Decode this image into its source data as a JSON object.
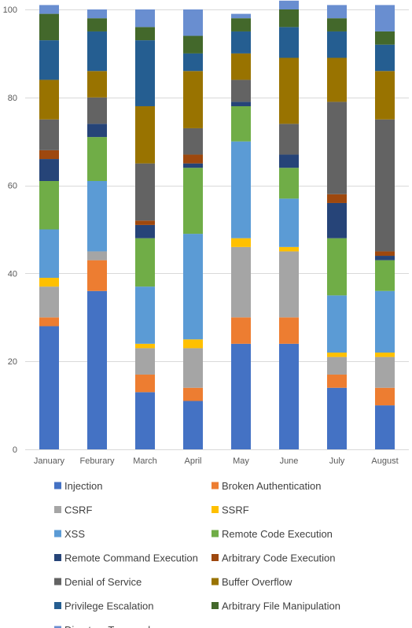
{
  "chart_data": {
    "type": "bar",
    "stacked": true,
    "categories": [
      "January",
      "Feburary",
      "March",
      "April",
      "May",
      "June",
      "July",
      "August"
    ],
    "ylim": [
      0,
      100
    ],
    "yticks": [
      0,
      20,
      40,
      60,
      80,
      100
    ],
    "grid": true,
    "legend_position": "bottom",
    "series": [
      {
        "name": "Injection",
        "color": "#4472C4",
        "values": [
          28,
          36,
          13,
          11,
          24,
          24,
          14,
          10
        ]
      },
      {
        "name": "Broken Authentication",
        "color": "#ED7D31",
        "values": [
          2,
          7,
          4,
          3,
          6,
          6,
          3,
          4
        ]
      },
      {
        "name": "CSRF",
        "color": "#A5A5A5",
        "values": [
          7,
          2,
          6,
          9,
          16,
          15,
          4,
          7
        ]
      },
      {
        "name": "SSRF",
        "color": "#FFC000",
        "values": [
          2,
          0,
          1,
          2,
          2,
          1,
          1,
          1
        ]
      },
      {
        "name": "XSS",
        "color": "#5B9BD5",
        "values": [
          11,
          16,
          13,
          24,
          22,
          11,
          13,
          14
        ]
      },
      {
        "name": "Remote Code Execution",
        "color": "#70AD47",
        "values": [
          11,
          10,
          11,
          15,
          8,
          7,
          13,
          7
        ]
      },
      {
        "name": "Remote Command Execution",
        "color": "#264478",
        "values": [
          5,
          3,
          3,
          1,
          1,
          3,
          8,
          1
        ]
      },
      {
        "name": "Arbitrary Code Execution",
        "color": "#9E480E",
        "values": [
          2,
          0,
          1,
          2,
          0,
          0,
          2,
          1
        ]
      },
      {
        "name": "Denial of Service",
        "color": "#636363",
        "values": [
          7,
          6,
          13,
          6,
          5,
          7,
          21,
          30
        ]
      },
      {
        "name": "Buffer Overflow",
        "color": "#997300",
        "values": [
          9,
          6,
          13,
          13,
          6,
          15,
          10,
          11
        ]
      },
      {
        "name": "Privilege Escalation",
        "color": "#255E91",
        "values": [
          9,
          9,
          15,
          4,
          5,
          7,
          6,
          6
        ]
      },
      {
        "name": "Arbitrary File Manipulation",
        "color": "#43682B",
        "values": [
          6,
          3,
          3,
          4,
          3,
          4,
          3,
          3
        ]
      },
      {
        "name": "Directory Traversal",
        "color": "#698ED0",
        "values": [
          2,
          2,
          4,
          6,
          1,
          2,
          3,
          6
        ]
      }
    ]
  }
}
